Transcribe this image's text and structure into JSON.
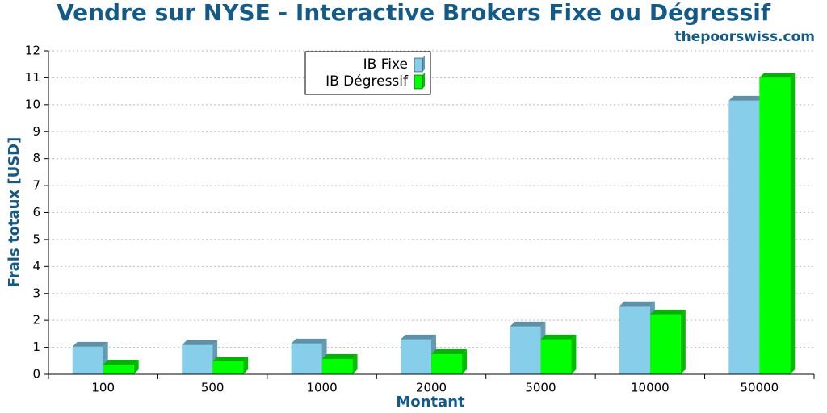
{
  "chart_data": {
    "type": "bar3d",
    "title": "Vendre sur NYSE - Interactive Brokers Fixe ou Dégressif",
    "subtitle": "thepoorswiss.com",
    "x_label": "Montant",
    "y_label": "Frais totaux [USD]",
    "categories": [
      "100",
      "500",
      "1000",
      "2000",
      "5000",
      "10000",
      "50000"
    ],
    "series": [
      {
        "name": "IB Fixe",
        "color": "#87ceeb",
        "values": [
          1.02,
          1.08,
          1.14,
          1.29,
          1.77,
          2.52,
          10.15
        ]
      },
      {
        "name": "IB Dégressif",
        "color": "#00ff00",
        "values": [
          0.36,
          0.48,
          0.57,
          0.75,
          1.29,
          2.22,
          11.0
        ]
      }
    ],
    "ylim": [
      0,
      12
    ],
    "yticks": [
      0,
      1,
      2,
      3,
      4,
      5,
      6,
      7,
      8,
      9,
      10,
      11,
      12
    ],
    "grid": true,
    "legend": "top-center"
  }
}
